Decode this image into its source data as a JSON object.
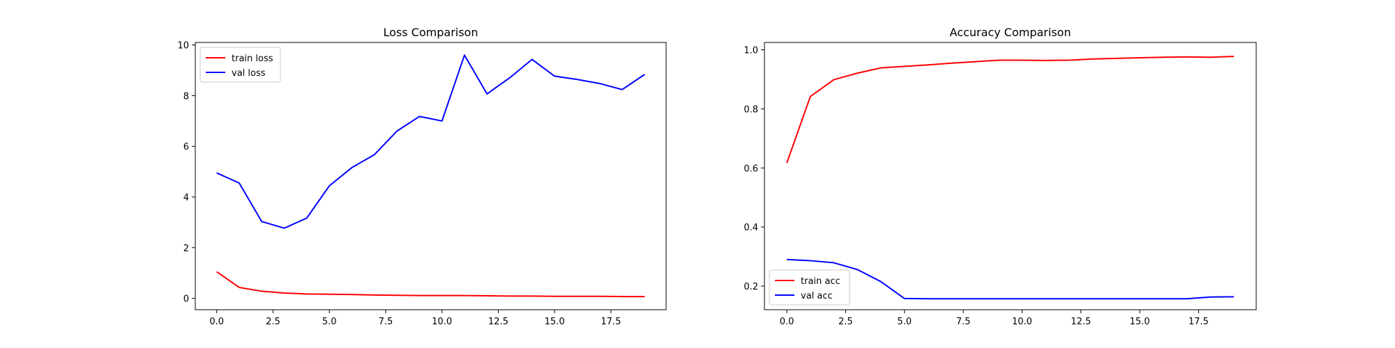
{
  "chart_data": [
    {
      "type": "line",
      "title": "Loss Comparison",
      "xlabel": "",
      "ylabel": "",
      "xlim": [
        -0.95,
        19.95
      ],
      "ylim": [
        -0.45,
        10.1
      ],
      "xticks": [
        0.0,
        2.5,
        5.0,
        7.5,
        10.0,
        12.5,
        15.0,
        17.5
      ],
      "xtick_labels": [
        "0.0",
        "2.5",
        "5.0",
        "7.5",
        "10.0",
        "12.5",
        "15.0",
        "17.5"
      ],
      "yticks": [
        0,
        2,
        4,
        6,
        8,
        10
      ],
      "ytick_labels": [
        "0",
        "2",
        "4",
        "6",
        "8",
        "10"
      ],
      "grid": false,
      "legend_position": "upper-left",
      "x": [
        0,
        1,
        2,
        3,
        4,
        5,
        6,
        7,
        8,
        9,
        10,
        11,
        12,
        13,
        14,
        15,
        16,
        17,
        18,
        19
      ],
      "series": [
        {
          "name": "train loss",
          "color": "#ff0000",
          "values": [
            1.05,
            0.43,
            0.28,
            0.21,
            0.17,
            0.16,
            0.15,
            0.13,
            0.12,
            0.11,
            0.11,
            0.11,
            0.1,
            0.09,
            0.09,
            0.08,
            0.08,
            0.08,
            0.07,
            0.07
          ]
        },
        {
          "name": "val loss",
          "color": "#0000ff",
          "values": [
            4.95,
            4.55,
            3.03,
            2.77,
            3.17,
            4.44,
            5.16,
            5.67,
            6.6,
            7.18,
            7.0,
            9.6,
            8.07,
            8.7,
            9.43,
            8.77,
            8.64,
            8.48,
            8.24,
            8.84
          ]
        }
      ]
    },
    {
      "type": "line",
      "title": "Accuracy Comparison",
      "xlabel": "",
      "ylabel": "",
      "xlim": [
        -0.95,
        19.95
      ],
      "ylim": [
        0.12,
        1.025
      ],
      "xticks": [
        0.0,
        2.5,
        5.0,
        7.5,
        10.0,
        12.5,
        15.0,
        17.5
      ],
      "xtick_labels": [
        "0.0",
        "2.5",
        "5.0",
        "7.5",
        "10.0",
        "12.5",
        "15.0",
        "17.5"
      ],
      "yticks": [
        0.2,
        0.4,
        0.6,
        0.8,
        1.0
      ],
      "ytick_labels": [
        "0.2",
        "0.4",
        "0.6",
        "0.8",
        "1.0"
      ],
      "grid": false,
      "legend_position": "lower-left",
      "x": [
        0,
        1,
        2,
        3,
        4,
        5,
        6,
        7,
        8,
        9,
        10,
        11,
        12,
        13,
        14,
        15,
        16,
        17,
        18,
        19
      ],
      "series": [
        {
          "name": "train acc",
          "color": "#ff0000",
          "values": [
            0.617,
            0.842,
            0.899,
            0.921,
            0.939,
            0.944,
            0.949,
            0.955,
            0.96,
            0.965,
            0.965,
            0.964,
            0.965,
            0.969,
            0.971,
            0.973,
            0.975,
            0.976,
            0.975,
            0.978
          ]
        },
        {
          "name": "val acc",
          "color": "#0000ff",
          "values": [
            0.29,
            0.286,
            0.279,
            0.256,
            0.215,
            0.158,
            0.157,
            0.157,
            0.157,
            0.157,
            0.157,
            0.157,
            0.157,
            0.157,
            0.157,
            0.157,
            0.157,
            0.157,
            0.163,
            0.164
          ]
        }
      ]
    }
  ]
}
